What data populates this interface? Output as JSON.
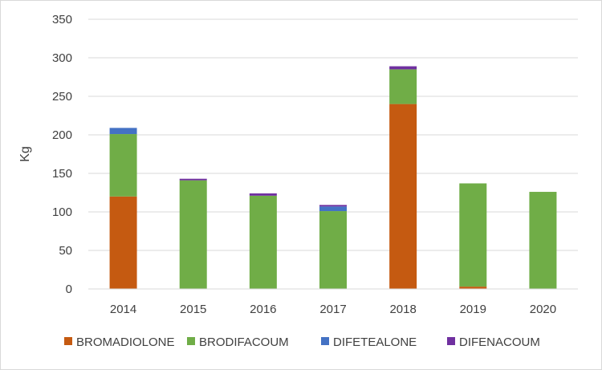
{
  "chart_data": {
    "type": "bar",
    "stacked": true,
    "title": "",
    "xlabel": "",
    "ylabel": "Kg",
    "ylim": [
      0,
      350
    ],
    "y_ticks": [
      0,
      50,
      100,
      150,
      200,
      250,
      300,
      350
    ],
    "grid": true,
    "legend_position": "bottom",
    "categories": [
      "2014",
      "2015",
      "2016",
      "2017",
      "2018",
      "2019",
      "2020"
    ],
    "series": [
      {
        "name": "BROMADIOLONE",
        "color": "#c55a11",
        "values": [
          120,
          0,
          0,
          0,
          240,
          3,
          0
        ]
      },
      {
        "name": "BRODIFACOUM",
        "color": "#70ad47",
        "values": [
          81,
          141,
          121,
          101,
          45,
          134,
          126
        ]
      },
      {
        "name": "DIFETEALONE",
        "color": "#4472c4",
        "values": [
          8,
          0,
          0,
          6,
          0,
          0,
          0
        ]
      },
      {
        "name": "DIFENACOUM",
        "color": "#7030a0",
        "values": [
          0,
          2,
          3,
          2,
          4,
          0,
          0
        ]
      }
    ]
  }
}
